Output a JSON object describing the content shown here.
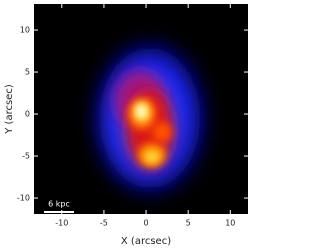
{
  "chart_data": {
    "type": "image",
    "xlabel": "X (arcsec)",
    "ylabel": "Y (arcsec)",
    "annotation": "6 kpc",
    "xlim": [
      -13.3,
      12.1
    ],
    "ylim": [
      -11.9,
      13.1
    ],
    "xticks": [
      -10,
      -5,
      0,
      5,
      10
    ],
    "yticks": [
      -10,
      -5,
      0,
      5,
      10
    ],
    "background": "#000000"
  }
}
